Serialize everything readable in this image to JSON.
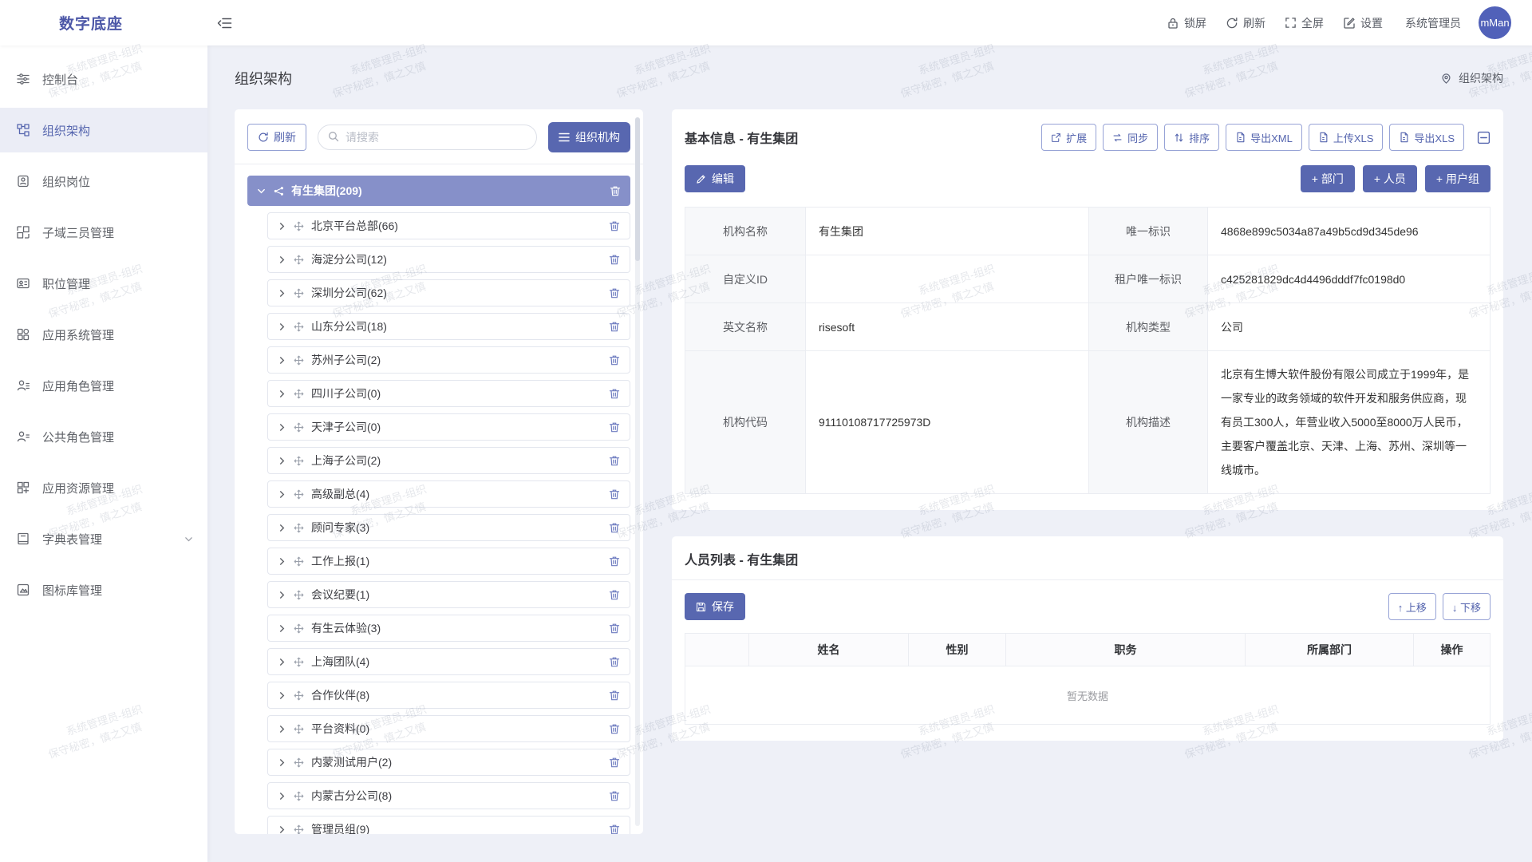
{
  "app": {
    "logo": "数字底座"
  },
  "header": {
    "lock_label": "锁屏",
    "refresh_label": "刷新",
    "fullscreen_label": "全屏",
    "settings_label": "设置",
    "username": "系统管理员",
    "avatar_text": "mMan"
  },
  "sidebar": {
    "items": [
      {
        "label": "控制台",
        "icon": "console-icon"
      },
      {
        "label": "组织架构",
        "icon": "org-structure-icon",
        "active": true
      },
      {
        "label": "组织岗位",
        "icon": "org-post-icon"
      },
      {
        "label": "子域三员管理",
        "icon": "subdomain-admin-icon"
      },
      {
        "label": "职位管理",
        "icon": "position-icon"
      },
      {
        "label": "应用系统管理",
        "icon": "app-system-icon"
      },
      {
        "label": "应用角色管理",
        "icon": "app-role-icon"
      },
      {
        "label": "公共角色管理",
        "icon": "public-role-icon"
      },
      {
        "label": "应用资源管理",
        "icon": "app-resource-icon"
      },
      {
        "label": "字典表管理",
        "icon": "dictionary-icon",
        "expandable": true
      },
      {
        "label": "图标库管理",
        "icon": "icon-library-icon"
      }
    ]
  },
  "page": {
    "title": "组织架构",
    "breadcrumb": "组织架构"
  },
  "tree": {
    "refresh_label": "刷新",
    "search_placeholder": "请搜索",
    "org_button_label": "组织机构",
    "root_label": "有生集团(209)",
    "children": [
      "北京平台总部(66)",
      "海淀分公司(12)",
      "深圳分公司(62)",
      "山东分公司(18)",
      "苏州子公司(2)",
      "四川子公司(0)",
      "天津子公司(0)",
      "上海子公司(2)",
      "高级副总(4)",
      "顾问专家(3)",
      "工作上报(1)",
      "会议纪要(1)",
      "有生云体验(3)",
      "上海团队(4)",
      "合作伙伴(8)",
      "平台资料(0)",
      "内蒙测试用户(2)",
      "内蒙古分公司(8)",
      "管理员组(9)"
    ]
  },
  "info": {
    "title": "基本信息 - 有生集团",
    "toolbar": {
      "expand": "扩展",
      "sync": "同步",
      "sort": "排序",
      "export_xml": "导出XML",
      "upload_xls": "上传XLS",
      "export_xls": "导出XLS"
    },
    "edit_label": "编辑",
    "add_department": "+ 部门",
    "add_person": "+ 人员",
    "add_user_group": "+ 用户组",
    "rows": [
      {
        "l1": "机构名称",
        "v1": "有生集团",
        "l2": "唯一标识",
        "v2": "4868e899c5034a87a49b5cd9d345de96"
      },
      {
        "l1": "自定义ID",
        "v1": "",
        "l2": "租户唯一标识",
        "v2": "c425281829dc4d4496dddf7fc0198d0"
      },
      {
        "l1": "英文名称",
        "v1": "risesoft",
        "l2": "机构类型",
        "v2": "公司"
      },
      {
        "l1": "机构代码",
        "v1": "91110108717725973D",
        "l2": "机构描述",
        "v2": "北京有生博大软件股份有限公司成立于1999年，是一家专业的政务领域的软件开发和服务供应商，现有员工300人，年营业收入5000至8000万人民币，主要客户覆盖北京、天津、上海、苏州、深圳等一线城市。"
      }
    ]
  },
  "person": {
    "title": "人员列表 - 有生集团",
    "save_label": "保存",
    "move_up_label": "↑ 上移",
    "move_down_label": "↓ 下移",
    "headers": [
      "",
      "姓名",
      "性别",
      "职务",
      "所属部门",
      "操作"
    ],
    "empty_text": "暂无数据"
  },
  "watermark": {
    "line1": "系统管理员-组织",
    "line2": "保守秘密，慎之又慎"
  },
  "colors": {
    "accent": "#5867b0",
    "tree_selected_bg": "#8690c9",
    "page_bg": "#eef0f7",
    "avatar_bg": "#5161b9"
  }
}
